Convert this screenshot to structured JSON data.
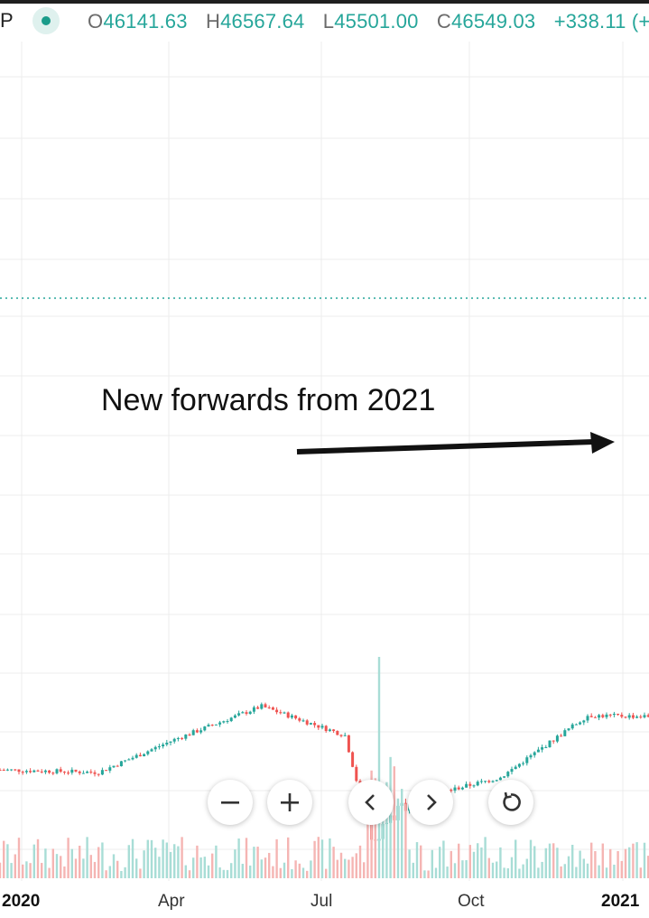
{
  "header": {
    "symbol_clip": "P",
    "open_label": "O",
    "open_value": "46141.63",
    "high_label": "H",
    "high_value": "46567.64",
    "low_label": "L",
    "low_value": "45501.00",
    "close_label": "C",
    "close_value": "46549.03",
    "change_text": "+338.11 (+0"
  },
  "annotation": {
    "text": "New forwards from 2021"
  },
  "controls": {
    "zoom_out_icon": "minus-icon",
    "zoom_in_icon": "plus-icon",
    "scroll_left_icon": "chevron-left-icon",
    "scroll_right_icon": "chevron-right-icon",
    "reset_icon": "reset-icon"
  },
  "colors": {
    "up": "#26a69a",
    "down": "#ef5350",
    "up_volume": "#a8ddd6",
    "down_volume": "#f5b5b3"
  },
  "chart_data": {
    "type": "candlestick",
    "title": "",
    "xlabel": "",
    "ylabel": "",
    "x_ticks": [
      "2020",
      "Apr",
      "Jul",
      "Oct",
      "2021"
    ],
    "y_axis_labels_visible": false,
    "grid": true,
    "last_ohlc": {
      "open": 46141.63,
      "high": 46567.64,
      "low": 45501.0,
      "close": 46549.03,
      "change": 338.11
    },
    "approx_close_path": [
      {
        "date": "2019-12-05",
        "close": 7300
      },
      {
        "date": "2019-12-31",
        "close": 7200
      },
      {
        "date": "2020-01-20",
        "close": 8600
      },
      {
        "date": "2020-02-12",
        "close": 10300
      },
      {
        "date": "2020-03-05",
        "close": 8800
      },
      {
        "date": "2020-03-12",
        "close": 5000
      },
      {
        "date": "2020-03-22",
        "close": 6200
      },
      {
        "date": "2020-04-15",
        "close": 7000
      },
      {
        "date": "2020-05-08",
        "close": 9800
      },
      {
        "date": "2020-06-10",
        "close": 9700
      },
      {
        "date": "2020-07-05",
        "close": 9100
      },
      {
        "date": "2020-07-28",
        "close": 11000
      },
      {
        "date": "2020-08-15",
        "close": 11900
      },
      {
        "date": "2020-09-04",
        "close": 10200
      },
      {
        "date": "2020-10-01",
        "close": 10600
      },
      {
        "date": "2020-10-25",
        "close": 13000
      },
      {
        "date": "2020-11-15",
        "close": 16000
      },
      {
        "date": "2020-12-01",
        "close": 19200
      },
      {
        "date": "2020-12-12",
        "close": 18000
      },
      {
        "date": "2020-12-27",
        "close": 26500
      },
      {
        "date": "2021-01-04",
        "close": 31500
      },
      {
        "date": "2021-01-09",
        "close": 40500
      },
      {
        "date": "2021-01-14",
        "close": 37000
      },
      {
        "date": "2021-01-19",
        "close": 36500
      }
    ]
  }
}
